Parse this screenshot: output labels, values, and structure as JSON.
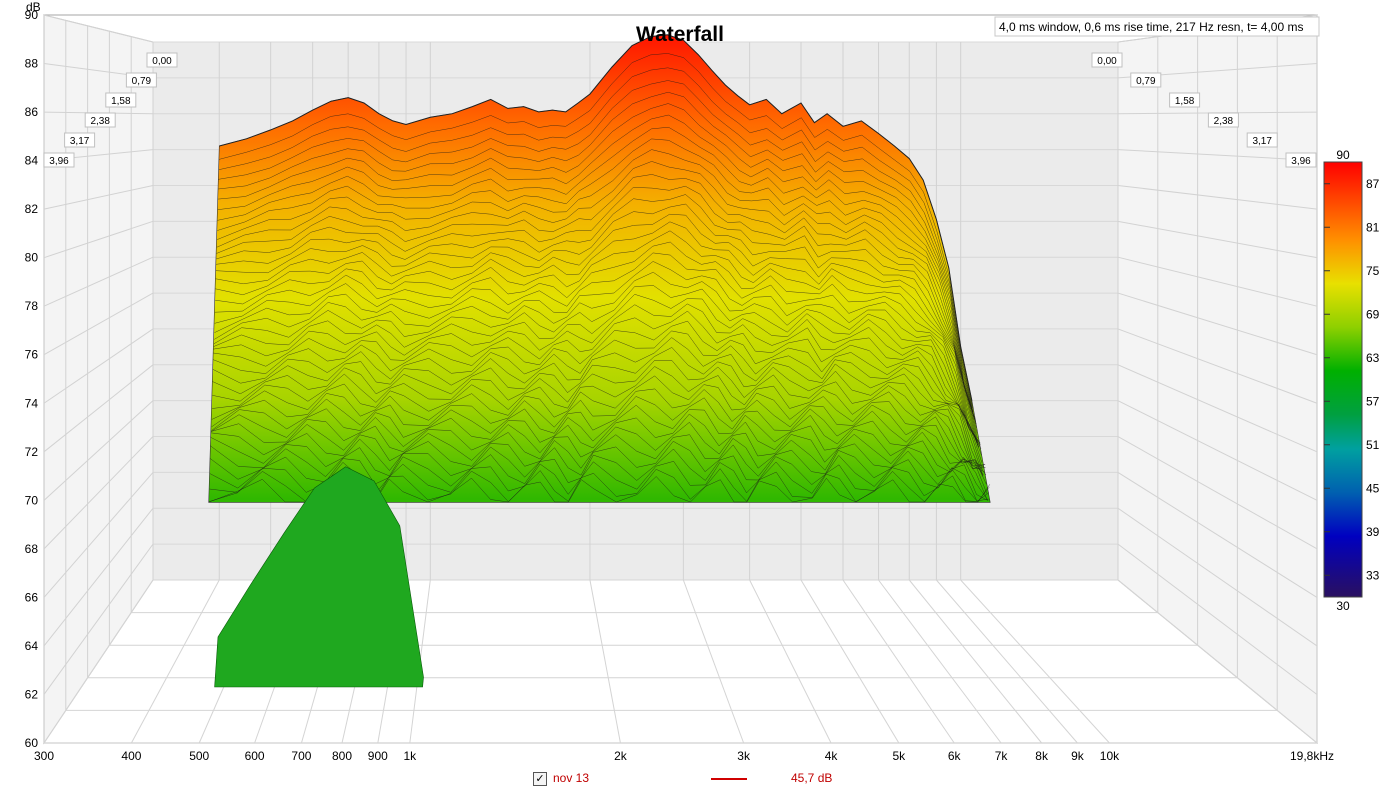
{
  "chart_data": {
    "type": "waterfall",
    "title": "Waterfall",
    "info": "4,0 ms window, 0,6 ms rise time,  217 Hz resn, t= 4,00 ms",
    "ylabel": "dB",
    "xlabel": "",
    "x_scale": "log",
    "x_range_hz": [
      300,
      19800
    ],
    "y_range_db": [
      60,
      90
    ],
    "y_ticks": [
      "90",
      "88",
      "86",
      "84",
      "82",
      "80",
      "78",
      "76",
      "74",
      "72",
      "70",
      "68",
      "66",
      "64",
      "62",
      "60"
    ],
    "x_ticks": [
      {
        "hz": 300,
        "label": "300"
      },
      {
        "hz": 400,
        "label": "400"
      },
      {
        "hz": 500,
        "label": "500"
      },
      {
        "hz": 600,
        "label": "600"
      },
      {
        "hz": 700,
        "label": "700"
      },
      {
        "hz": 800,
        "label": "800"
      },
      {
        "hz": 900,
        "label": "900"
      },
      {
        "hz": 1000,
        "label": "1k"
      },
      {
        "hz": 2000,
        "label": "2k"
      },
      {
        "hz": 3000,
        "label": "3k"
      },
      {
        "hz": 4000,
        "label": "4k"
      },
      {
        "hz": 5000,
        "label": "5k"
      },
      {
        "hz": 6000,
        "label": "6k"
      },
      {
        "hz": 7000,
        "label": "7k"
      },
      {
        "hz": 8000,
        "label": "8k"
      },
      {
        "hz": 9000,
        "label": "9k"
      },
      {
        "hz": 10000,
        "label": "10k"
      },
      {
        "hz": 19800,
        "label": "19,8kHz"
      }
    ],
    "time_ticks_ms": [
      "0,00",
      "0,79",
      "1,58",
      "2,38",
      "3,17",
      "3,96"
    ],
    "colorbar_ticks": [
      "90",
      "87",
      "81",
      "75",
      "69",
      "63",
      "57",
      "51",
      "45",
      "39",
      "33",
      "30"
    ],
    "colorbar_range_db": [
      30,
      90
    ],
    "colors": {
      "high": "#ff0000",
      "mid": "#e6e600",
      "low": "#00b000",
      "floor": "#2a1060"
    },
    "series": [
      {
        "name": "nov 13",
        "t_ms": 0.0,
        "freqs_hz": [
          400,
          450,
          500,
          550,
          600,
          650,
          700,
          750,
          800,
          850,
          900,
          1000,
          1100,
          1200,
          1300,
          1400,
          1500,
          1600,
          1700,
          1800,
          1900,
          2000,
          2200,
          2400,
          2600,
          2800,
          3000,
          3200,
          3400,
          3600,
          3800,
          4000,
          4300,
          4600,
          5000,
          5300,
          5600,
          6000,
          6500,
          7000,
          7500,
          8000,
          8500,
          9000,
          9500,
          10000,
          10500
        ],
        "values_db": [
          84.2,
          84.6,
          85.1,
          85.6,
          86.2,
          86.7,
          86.9,
          86.6,
          86.0,
          85.6,
          85.4,
          85.8,
          86.0,
          86.4,
          86.8,
          86.3,
          86.4,
          86.1,
          86.2,
          86.1,
          86.6,
          87.1,
          88.6,
          89.8,
          90.3,
          90.4,
          90.1,
          89.3,
          88.4,
          87.6,
          87.0,
          86.5,
          86.8,
          86.0,
          86.6,
          85.5,
          86.0,
          85.3,
          85.6,
          84.9,
          84.2,
          83.5,
          82.3,
          80.1,
          77.4,
          73.0,
          70.0
        ]
      }
    ],
    "legend": [
      {
        "checked": true,
        "name": "nov 13",
        "level": "45,7 dB",
        "color": "#d00000"
      }
    ]
  },
  "ui": {
    "checkbox_mark": "✓"
  }
}
